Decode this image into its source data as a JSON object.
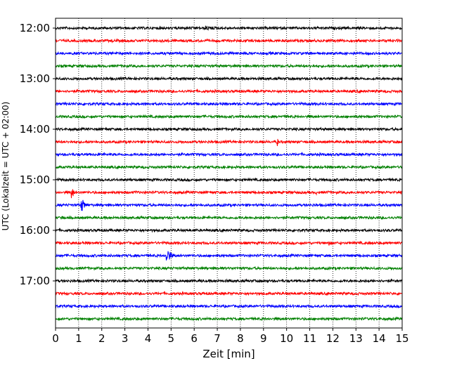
{
  "chart_data": {
    "type": "line",
    "xlabel": "Zeit  [min]",
    "ylabel": "UTC (Lokalzeit = UTC + 02:00)",
    "xlim": [
      0,
      15
    ],
    "x_ticks": [
      "0",
      "1",
      "2",
      "3",
      "4",
      "5",
      "6",
      "7",
      "8",
      "9",
      "10",
      "11",
      "12",
      "13",
      "14",
      "15"
    ],
    "vertical_grid": true,
    "grid_style": "dotted",
    "row_interval_minutes": 15,
    "row_labels": [
      "12:00",
      "",
      "",
      "",
      "13:00",
      "",
      "",
      "",
      "14:00",
      "",
      "",
      "",
      "15:00",
      "",
      "",
      "",
      "16:00",
      "",
      "",
      "",
      "17:00",
      "",
      "",
      ""
    ],
    "trace_color_cycle": [
      "#000000",
      "#ff0000",
      "#0000ff",
      "#008000"
    ],
    "traces_events": [
      {
        "row": 0,
        "events": [
          {
            "t": 4.5,
            "amp": 2.5,
            "dur": 1.2
          },
          {
            "t": 6.5,
            "amp": 3.5,
            "dur": 1.6
          },
          {
            "t": 11.6,
            "amp": 2,
            "dur": 0.8
          }
        ]
      },
      {
        "row": 1,
        "events": [
          {
            "t": 2.45,
            "amp": 5,
            "dur": 0.08
          },
          {
            "t": 14.4,
            "amp": 2.5,
            "dur": 0.6
          }
        ]
      },
      {
        "row": 2,
        "events": [
          {
            "t": 1.5,
            "amp": 2,
            "dur": 0.3
          },
          {
            "t": 9.3,
            "amp": 3,
            "dur": 0.1
          },
          {
            "t": 14.8,
            "amp": 2,
            "dur": 0.4
          }
        ]
      },
      {
        "row": 3,
        "events": [
          {
            "t": 0.4,
            "amp": 2,
            "dur": 0.6
          },
          {
            "t": 11.0,
            "amp": 2.5,
            "dur": 0.6
          },
          {
            "t": 13.6,
            "amp": 2,
            "dur": 0.6
          }
        ]
      },
      {
        "row": 4,
        "events": [
          {
            "t": 5.5,
            "amp": 2.5,
            "dur": 0.8
          },
          {
            "t": 13.0,
            "amp": 2.5,
            "dur": 0.6
          }
        ]
      },
      {
        "row": 5,
        "events": [
          {
            "t": 2.4,
            "amp": 1.8,
            "dur": 0.4
          },
          {
            "t": 13.0,
            "amp": 3,
            "dur": 0.7
          }
        ]
      },
      {
        "row": 6,
        "events": [
          {
            "t": 6.3,
            "amp": 2,
            "dur": 0.7
          },
          {
            "t": 10.6,
            "amp": 2.5,
            "dur": 0.5
          }
        ]
      },
      {
        "row": 7,
        "events": [
          {
            "t": 8.4,
            "amp": 2.5,
            "dur": 0.4
          },
          {
            "t": 14.2,
            "amp": 2,
            "dur": 0.3
          }
        ]
      },
      {
        "row": 8,
        "events": [
          {
            "t": 2.2,
            "amp": 2.5,
            "dur": 0.5
          },
          {
            "t": 11.0,
            "amp": 3,
            "dur": 0.2
          },
          {
            "t": 5.0,
            "amp": 2,
            "dur": 0.8
          }
        ]
      },
      {
        "row": 9,
        "events": [
          {
            "t": 9.6,
            "amp": 8,
            "dur": 0.12
          }
        ]
      },
      {
        "row": 10,
        "events": [
          {
            "t": 9.8,
            "amp": 1.2,
            "dur": 0.5
          }
        ]
      },
      {
        "row": 11,
        "events": [
          {
            "t": 0.4,
            "amp": 1.5,
            "dur": 0.3
          },
          {
            "t": 3.3,
            "amp": 1.5,
            "dur": 0.3
          }
        ]
      },
      {
        "row": 12,
        "events": [
          {
            "t": 3.2,
            "amp": 2.5,
            "dur": 0.7
          },
          {
            "t": 8.1,
            "amp": 3,
            "dur": 0.05
          }
        ]
      },
      {
        "row": 13,
        "events": [
          {
            "t": 0.7,
            "amp": 10,
            "dur": 0.3
          },
          {
            "t": 3.5,
            "amp": 3,
            "dur": 0.08
          },
          {
            "t": 9.0,
            "amp": 3,
            "dur": 0.08
          },
          {
            "t": 10.4,
            "amp": 3,
            "dur": 0.08
          },
          {
            "t": 11.3,
            "amp": 3,
            "dur": 0.08
          },
          {
            "t": 11.8,
            "amp": 3,
            "dur": 0.08
          },
          {
            "t": 14.0,
            "amp": 3,
            "dur": 0.08
          }
        ]
      },
      {
        "row": 14,
        "events": [
          {
            "t": 1.1,
            "amp": 13,
            "dur": 0.45
          },
          {
            "t": 11.7,
            "amp": 2,
            "dur": 0.4
          }
        ]
      },
      {
        "row": 15,
        "events": [
          {
            "t": 0.25,
            "amp": 5,
            "dur": 0.3
          }
        ]
      },
      {
        "row": 16,
        "events": []
      },
      {
        "row": 17,
        "events": [
          {
            "t": 11.8,
            "amp": 5,
            "dur": 0.4
          },
          {
            "t": 13.6,
            "amp": 2.5,
            "dur": 0.6
          },
          {
            "t": 14.8,
            "amp": 2,
            "dur": 0.3
          }
        ]
      },
      {
        "row": 18,
        "events": [
          {
            "t": 0.4,
            "amp": 2,
            "dur": 0.3
          },
          {
            "t": 1.4,
            "amp": 2,
            "dur": 0.3
          },
          {
            "t": 2.4,
            "amp": 2,
            "dur": 0.3
          },
          {
            "t": 4.8,
            "amp": 13,
            "dur": 0.55
          }
        ]
      },
      {
        "row": 19,
        "events": [
          {
            "t": 5.1,
            "amp": 1.2,
            "dur": 0.5
          }
        ]
      },
      {
        "row": 20,
        "events": [
          {
            "t": 6.3,
            "amp": 2.5,
            "dur": 1.0
          }
        ]
      },
      {
        "row": 21,
        "events": [
          {
            "t": 6.5,
            "amp": 1.2,
            "dur": 0.4
          }
        ]
      },
      {
        "row": 22,
        "events": [
          {
            "t": 1.2,
            "amp": 2,
            "dur": 0.5
          },
          {
            "t": 8.8,
            "amp": 2,
            "dur": 0.4
          }
        ]
      },
      {
        "row": 23,
        "events": [
          {
            "t": 3.0,
            "amp": 1.2,
            "dur": 0.5
          }
        ]
      }
    ]
  }
}
